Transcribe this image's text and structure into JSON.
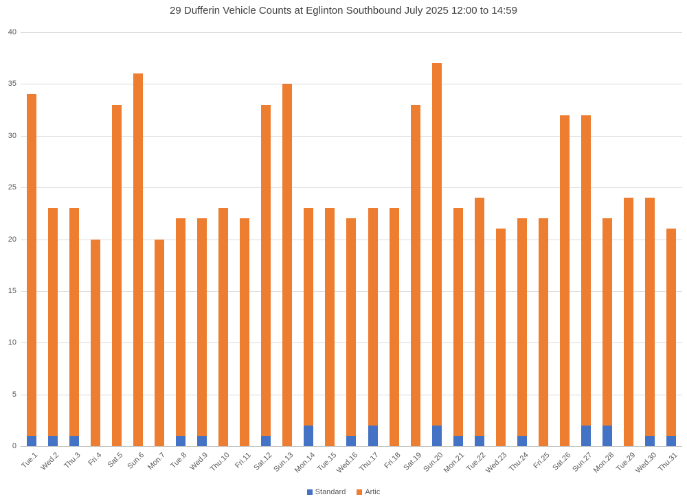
{
  "chart_data": {
    "type": "bar",
    "stacked": true,
    "title": "29 Dufferin Vehicle Counts at Eglinton Southbound July 2025  12:00 to 14:59",
    "categories": [
      "Tue.1",
      "Wed.2",
      "Thu.3",
      "Fri.4",
      "Sat.5",
      "Sun.6",
      "Mon.7",
      "Tue.8",
      "Wed.9",
      "Thu.10",
      "Fri.11",
      "Sat.12",
      "Sun.13",
      "Mon.14",
      "Tue.15",
      "Wed.16",
      "Thu.17",
      "Fri.18",
      "Sat.19",
      "Sun.20",
      "Mon.21",
      "Tue.22",
      "Wed.23",
      "Thu.24",
      "Fri.25",
      "Sat.26",
      "Sun.27",
      "Mon.28",
      "Tue.29",
      "Wed.30",
      "Thu.31"
    ],
    "series": [
      {
        "name": "Standard",
        "color": "#4472C4",
        "values": [
          1,
          1,
          1,
          0,
          0,
          0,
          0,
          1,
          1,
          0,
          0,
          1,
          0,
          2,
          0,
          1,
          2,
          0,
          0,
          2,
          1,
          1,
          0,
          1,
          0,
          0,
          2,
          2,
          0,
          1,
          1
        ]
      },
      {
        "name": "Artic",
        "color": "#ED7D31",
        "values": [
          33,
          22,
          22,
          20,
          33,
          36,
          20,
          21,
          21,
          23,
          22,
          32,
          35,
          21,
          23,
          21,
          21,
          23,
          33,
          35,
          22,
          23,
          21,
          21,
          22,
          32,
          30,
          20,
          24,
          23,
          20
        ]
      }
    ],
    "totals": [
      34,
      23,
      23,
      20,
      33,
      36,
      20,
      22,
      22,
      23,
      22,
      33,
      35,
      23,
      23,
      22,
      23,
      23,
      33,
      37,
      23,
      24,
      21,
      22,
      22,
      32,
      32,
      22,
      24,
      24,
      21
    ],
    "xlabel": "",
    "ylabel": "",
    "ylim": [
      0,
      40
    ],
    "ytick_step": 5,
    "grid": true,
    "legend_position": "bottom",
    "colors": {
      "standard": "#4472C4",
      "artic": "#ED7D31",
      "gridline": "#d9d9d9",
      "text": "#595959",
      "title": "#404040"
    }
  }
}
